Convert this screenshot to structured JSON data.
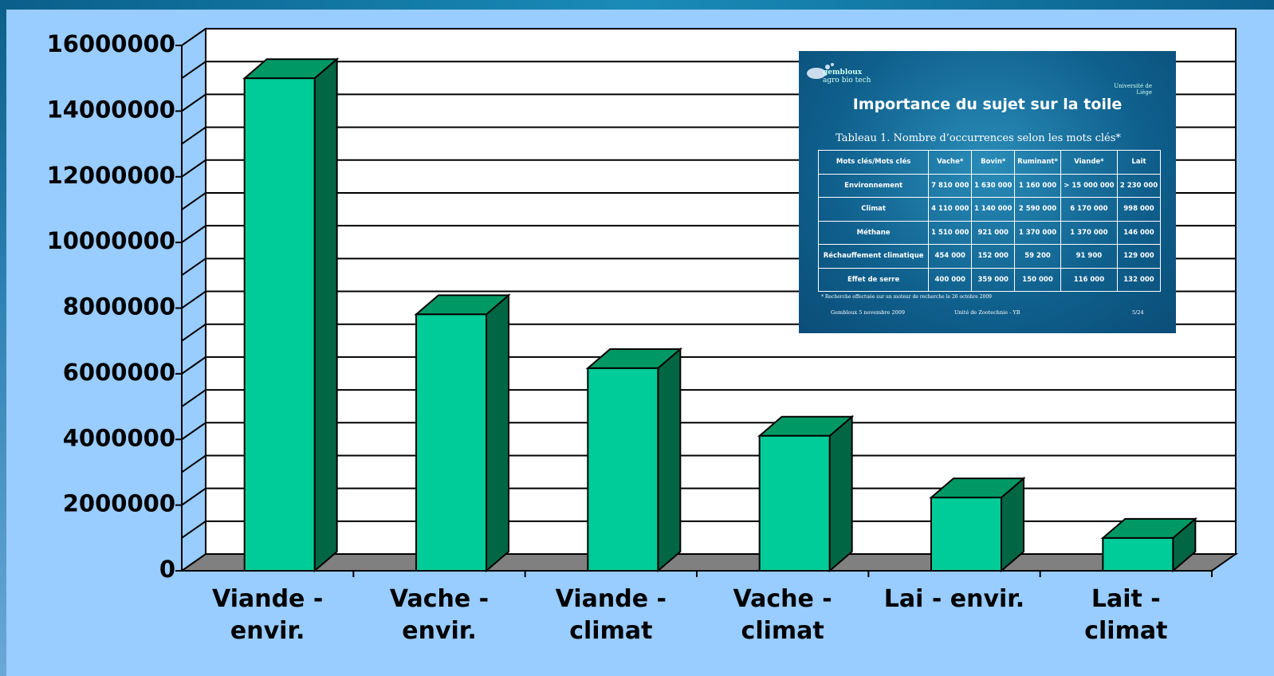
{
  "chart_data": {
    "type": "bar3d",
    "categories": [
      "Viande - envir.",
      "Vache - envir.",
      "Viande - climat",
      "Vache - climat",
      "Lai - envir.",
      "Lait - climat"
    ],
    "values": [
      15000000,
      7810000,
      6170000,
      4110000,
      2230000,
      998000
    ],
    "color": "#00cc99",
    "ylim": [
      0,
      16000000
    ],
    "yticks": [
      0,
      2000000,
      4000000,
      6000000,
      8000000,
      10000000,
      12000000,
      14000000,
      16000000
    ],
    "grid": true
  },
  "inset": {
    "logo": "gembloux",
    "logo_sub": "agro bio tech",
    "university": "Université de Liège",
    "title": "Importance du sujet sur la toile",
    "caption": "Tableau 1. Nombre d’occurrences selon les mots clés*",
    "headers": [
      "Mots clés/Mots clés",
      "Vache*",
      "Bovin*",
      "Ruminant*",
      "Viande*",
      "Lait"
    ],
    "rows": [
      [
        "Environnement",
        "7 810 000",
        "1 630 000",
        "1 160 000",
        "> 15 000 000",
        "2 230 000"
      ],
      [
        "Climat",
        "4 110 000",
        "1 140 000",
        "2 590 000",
        "6 170 000",
        "998 000"
      ],
      [
        "Méthane",
        "1 510 000",
        "921 000",
        "1 370 000",
        "1 370 000",
        "146 000"
      ],
      [
        "Réchauffement climatique",
        "454 000",
        "152 000",
        "59 200",
        "91 900",
        "129 000"
      ],
      [
        "Effet de serre",
        "400 000",
        "359 000",
        "150 000",
        "116 000",
        "132 000"
      ]
    ],
    "footnote": "* Recherche effectuée sur un moteur de recherche le 26 octobre 2009",
    "footer": [
      "Gembloux 5 novembre 2009",
      "Unité de Zootechnie - YB",
      "5/24"
    ]
  }
}
